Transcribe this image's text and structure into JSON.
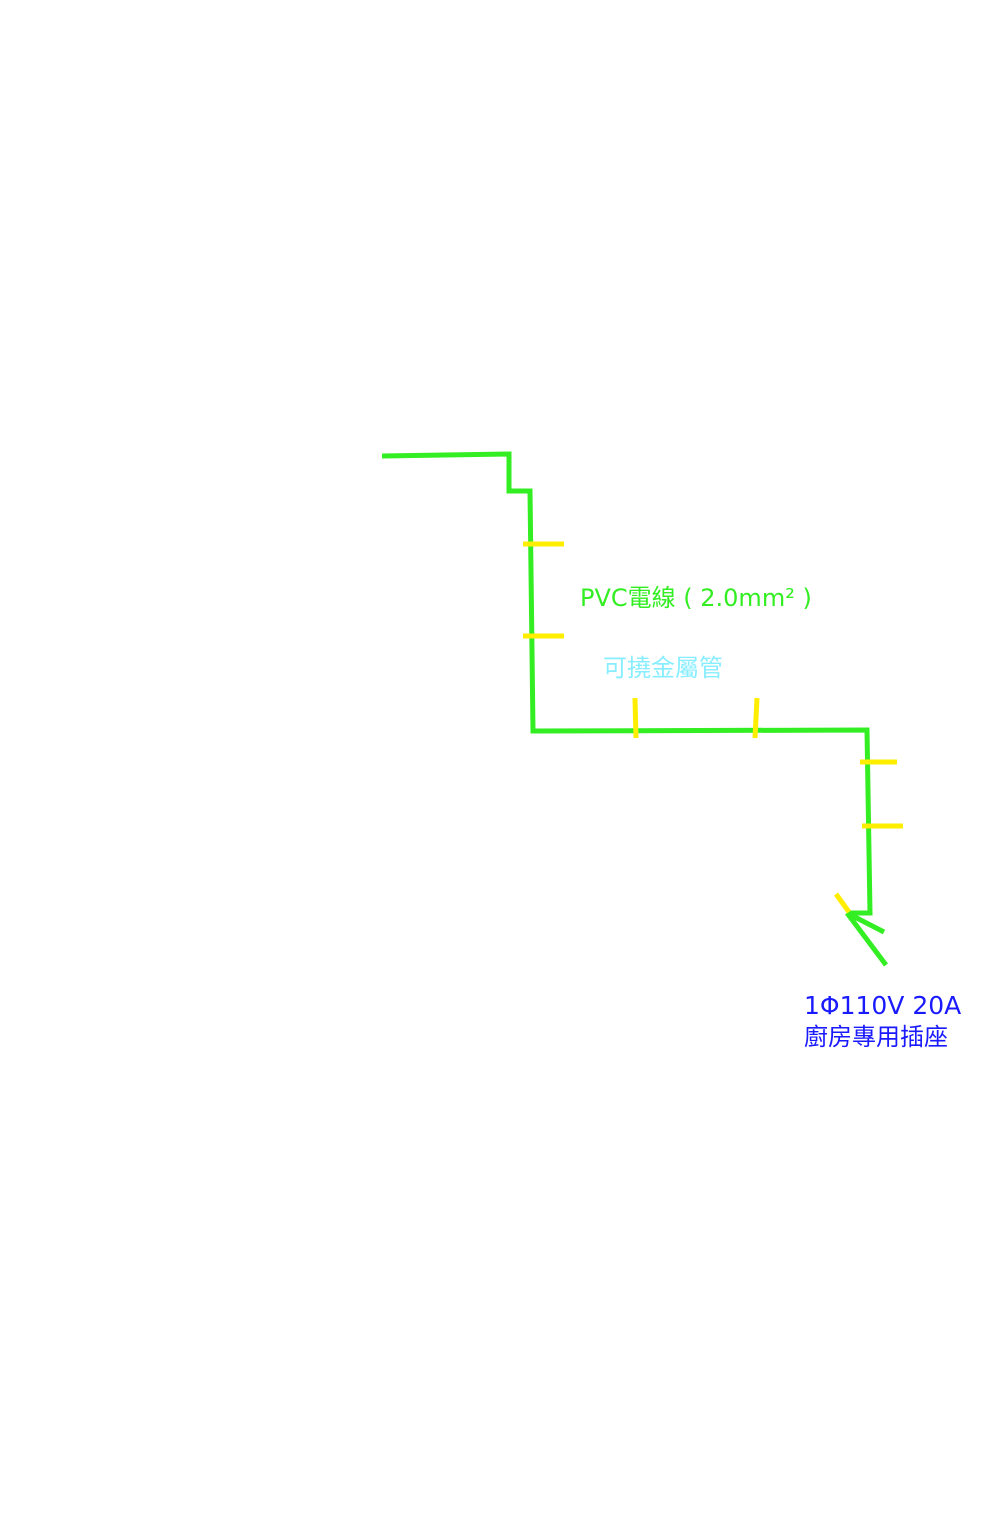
{
  "colors": {
    "wire": "#33ee22",
    "strap": "#ffee00",
    "wire_label": "#33ee22",
    "conduit_label": "#88eeff",
    "outlet_label": "#1a1aff",
    "background": "#ffffff"
  },
  "labels": {
    "wire": "PVC電線 ( 2.0mm² )",
    "conduit": "可撓金屬管",
    "outlet_spec": "1Φ110V 20A",
    "outlet_name": "廚房專用插座"
  },
  "icons": {
    "strap": "conduit-strap",
    "arrow": "arrow-to-outlet"
  }
}
